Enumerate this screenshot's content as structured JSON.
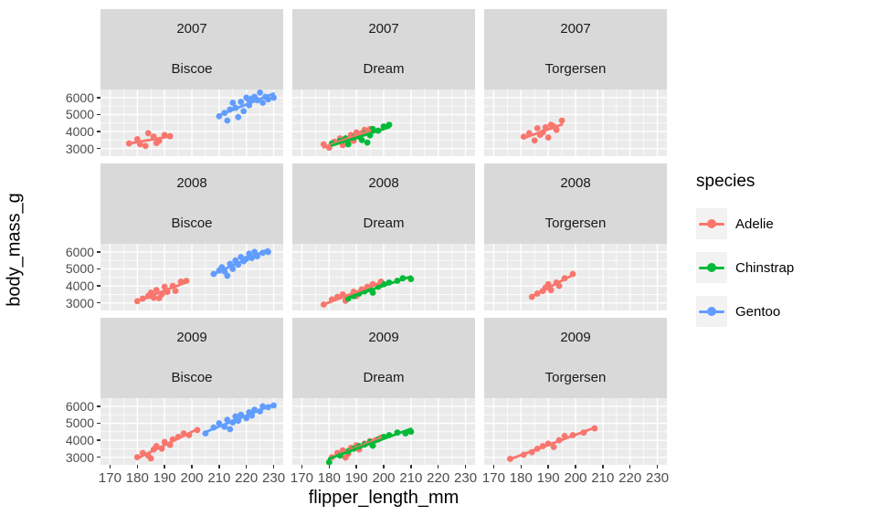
{
  "chart_data": {
    "type": "scatter",
    "title": "",
    "xlabel": "flipper_length_mm",
    "ylabel": "body_mass_g",
    "x_ticks": [
      170,
      180,
      190,
      200,
      210,
      220,
      230
    ],
    "y_ticks": [
      3000,
      4000,
      5000,
      6000
    ],
    "x_minor": [
      175,
      185,
      195,
      205,
      215,
      225
    ],
    "y_minor": [
      3500,
      4500,
      5500
    ],
    "xlim": [
      166.5,
      233.5
    ],
    "ylim": [
      2550,
      6480
    ],
    "grid": true,
    "panel_bg": "#ebebeb",
    "grid_color": "#ffffff",
    "facet_rows": [
      "2007",
      "2008",
      "2009"
    ],
    "facet_cols": [
      "Biscoe",
      "Dream",
      "Torgersen"
    ],
    "legend": {
      "title": "species",
      "position": "right",
      "entries": [
        {
          "label": "Adelie",
          "color": "#F8766D"
        },
        {
          "label": "Chinstrap",
          "color": "#00BA38"
        },
        {
          "label": "Gentoo",
          "color": "#619CFF"
        }
      ]
    },
    "series_colors": {
      "Adelie": "#F8766D",
      "Chinstrap": "#00BA38",
      "Gentoo": "#619CFF"
    },
    "smooth": true,
    "panels": [
      {
        "year": "2007",
        "island": "Biscoe",
        "groups": [
          {
            "species": "Adelie",
            "points": [
              [
                177,
                3300
              ],
              [
                180,
                3550
              ],
              [
                181,
                3250
              ],
              [
                183,
                3150
              ],
              [
                184,
                3900
              ],
              [
                186,
                3700
              ],
              [
                187,
                3325
              ],
              [
                188,
                3450
              ],
              [
                190,
                3800
              ],
              [
                192,
                3725
              ]
            ]
          },
          {
            "species": "Gentoo",
            "points": [
              [
                210,
                4900
              ],
              [
                212,
                5100
              ],
              [
                213,
                4650
              ],
              [
                214,
                5300
              ],
              [
                215,
                5700
              ],
              [
                216,
                5400
              ],
              [
                217,
                4850
              ],
              [
                218,
                5750
              ],
              [
                219,
                5200
              ],
              [
                220,
                6000
              ],
              [
                221,
                5550
              ],
              [
                221,
                5850
              ],
              [
                222,
                5950
              ],
              [
                223,
                6050
              ],
              [
                224,
                5850
              ],
              [
                225,
                6300
              ],
              [
                226,
                5700
              ],
              [
                227,
                6050
              ],
              [
                228,
                5900
              ],
              [
                230,
                6000
              ]
            ]
          }
        ]
      },
      {
        "year": "2007",
        "island": "Dream",
        "groups": [
          {
            "species": "Adelie",
            "points": [
              [
                178,
                3250
              ],
              [
                180,
                3050
              ],
              [
                182,
                3400
              ],
              [
                184,
                3600
              ],
              [
                185,
                3200
              ],
              [
                186,
                3550
              ],
              [
                187,
                3350
              ],
              [
                188,
                3800
              ],
              [
                189,
                3450
              ],
              [
                190,
                3950
              ],
              [
                191,
                3700
              ],
              [
                192,
                3900
              ],
              [
                193,
                4100
              ],
              [
                195,
                4150
              ]
            ]
          },
          {
            "species": "Chinstrap",
            "points": [
              [
                181,
                3300
              ],
              [
                184,
                3450
              ],
              [
                186,
                3600
              ],
              [
                187,
                3250
              ],
              [
                189,
                3650
              ],
              [
                191,
                3700
              ],
              [
                192,
                3500
              ],
              [
                193,
                3900
              ],
              [
                194,
                3350
              ],
              [
                195,
                3775
              ],
              [
                196,
                4150
              ],
              [
                198,
                4050
              ],
              [
                200,
                4300
              ],
              [
                202,
                4400
              ]
            ]
          }
        ]
      },
      {
        "year": "2007",
        "island": "Torgersen",
        "groups": [
          {
            "species": "Adelie",
            "points": [
              [
                181,
                3700
              ],
              [
                183,
                3900
              ],
              [
                185,
                3475
              ],
              [
                186,
                4200
              ],
              [
                187,
                3800
              ],
              [
                188,
                3950
              ],
              [
                189,
                4250
              ],
              [
                190,
                3650
              ],
              [
                191,
                4400
              ],
              [
                192,
                4300
              ],
              [
                193,
                4100
              ],
              [
                195,
                4650
              ]
            ]
          }
        ]
      },
      {
        "year": "2008",
        "island": "Biscoe",
        "groups": [
          {
            "species": "Adelie",
            "points": [
              [
                180,
                3100
              ],
              [
                182,
                3250
              ],
              [
                184,
                3400
              ],
              [
                185,
                3600
              ],
              [
                186,
                3300
              ],
              [
                187,
                3750
              ],
              [
                188,
                3275
              ],
              [
                189,
                3500
              ],
              [
                190,
                3950
              ],
              [
                191,
                3650
              ],
              [
                193,
                4000
              ],
              [
                194,
                3700
              ],
              [
                196,
                4250
              ],
              [
                198,
                4300
              ]
            ]
          },
          {
            "species": "Gentoo",
            "points": [
              [
                208,
                4700
              ],
              [
                210,
                4900
              ],
              [
                211,
                5100
              ],
              [
                212,
                4850
              ],
              [
                213,
                4600
              ],
              [
                214,
                5300
              ],
              [
                215,
                5000
              ],
              [
                216,
                5500
              ],
              [
                217,
                5250
              ],
              [
                218,
                5700
              ],
              [
                219,
                5450
              ],
              [
                220,
                5600
              ],
              [
                221,
                5900
              ],
              [
                222,
                5650
              ],
              [
                223,
                6000
              ],
              [
                224,
                5750
              ],
              [
                226,
                5950
              ],
              [
                228,
                6000
              ]
            ]
          }
        ]
      },
      {
        "year": "2008",
        "island": "Dream",
        "groups": [
          {
            "species": "Adelie",
            "points": [
              [
                178,
                2900
              ],
              [
                181,
                3200
              ],
              [
                183,
                3350
              ],
              [
                185,
                3500
              ],
              [
                186,
                3125
              ],
              [
                187,
                3300
              ],
              [
                189,
                3650
              ],
              [
                190,
                3400
              ],
              [
                192,
                3800
              ],
              [
                194,
                3950
              ],
              [
                196,
                4100
              ],
              [
                199,
                4250
              ]
            ]
          },
          {
            "species": "Chinstrap",
            "points": [
              [
                187,
                3250
              ],
              [
                189,
                3400
              ],
              [
                191,
                3550
              ],
              [
                193,
                3675
              ],
              [
                195,
                3800
              ],
              [
                196,
                3600
              ],
              [
                198,
                3950
              ],
              [
                200,
                4100
              ],
              [
                202,
                4200
              ],
              [
                205,
                4300
              ],
              [
                207,
                4450
              ],
              [
                210,
                4400
              ]
            ]
          }
        ]
      },
      {
        "year": "2008",
        "island": "Torgersen",
        "groups": [
          {
            "species": "Adelie",
            "points": [
              [
                184,
                3350
              ],
              [
                186,
                3550
              ],
              [
                188,
                3700
              ],
              [
                189,
                3900
              ],
              [
                190,
                4100
              ],
              [
                191,
                3750
              ],
              [
                193,
                4200
              ],
              [
                194,
                4000
              ],
              [
                196,
                4450
              ],
              [
                199,
                4700
              ]
            ]
          }
        ]
      },
      {
        "year": "2009",
        "island": "Biscoe",
        "groups": [
          {
            "species": "Adelie",
            "points": [
              [
                180,
                3000
              ],
              [
                182,
                3250
              ],
              [
                184,
                3100
              ],
              [
                185,
                2925
              ],
              [
                186,
                3450
              ],
              [
                187,
                3650
              ],
              [
                189,
                3500
              ],
              [
                190,
                3900
              ],
              [
                192,
                3725
              ],
              [
                193,
                4050
              ],
              [
                195,
                4200
              ],
              [
                197,
                4400
              ],
              [
                199,
                4300
              ],
              [
                202,
                4600
              ]
            ]
          },
          {
            "species": "Gentoo",
            "points": [
              [
                205,
                4400
              ],
              [
                208,
                4750
              ],
              [
                210,
                5000
              ],
              [
                212,
                4800
              ],
              [
                213,
                5200
              ],
              [
                214,
                4650
              ],
              [
                215,
                5050
              ],
              [
                216,
                5400
              ],
              [
                217,
                5150
              ],
              [
                218,
                5500
              ],
              [
                220,
                5300
              ],
              [
                221,
                5650
              ],
              [
                222,
                5450
              ],
              [
                223,
                5800
              ],
              [
                225,
                5700
              ],
              [
                226,
                6000
              ],
              [
                228,
                5950
              ],
              [
                230,
                6050
              ]
            ]
          }
        ]
      },
      {
        "year": "2009",
        "island": "Dream",
        "groups": [
          {
            "species": "Adelie",
            "points": [
              [
                181,
                3000
              ],
              [
                183,
                3250
              ],
              [
                185,
                3400
              ],
              [
                186,
                2975
              ],
              [
                187,
                3200
              ],
              [
                188,
                3550
              ],
              [
                190,
                3700
              ],
              [
                191,
                3450
              ],
              [
                193,
                3800
              ],
              [
                195,
                3950
              ],
              [
                197,
                4000
              ],
              [
                199,
                4150
              ]
            ]
          },
          {
            "species": "Chinstrap",
            "points": [
              [
                180,
                2700
              ],
              [
                184,
                3100
              ],
              [
                187,
                3350
              ],
              [
                189,
                3500
              ],
              [
                191,
                3650
              ],
              [
                193,
                3750
              ],
              [
                195,
                3900
              ],
              [
                196,
                3675
              ],
              [
                198,
                4050
              ],
              [
                200,
                4200
              ],
              [
                202,
                4300
              ],
              [
                205,
                4450
              ],
              [
                208,
                4400
              ],
              [
                210,
                4500
              ]
            ]
          }
        ]
      },
      {
        "year": "2009",
        "island": "Torgersen",
        "groups": [
          {
            "species": "Adelie",
            "points": [
              [
                176,
                2900
              ],
              [
                181,
                3150
              ],
              [
                184,
                3300
              ],
              [
                186,
                3500
              ],
              [
                188,
                3650
              ],
              [
                190,
                3800
              ],
              [
                192,
                3600
              ],
              [
                194,
                4000
              ],
              [
                196,
                4250
              ],
              [
                199,
                4300
              ],
              [
                203,
                4450
              ],
              [
                207,
                4700
              ]
            ]
          }
        ]
      }
    ]
  }
}
